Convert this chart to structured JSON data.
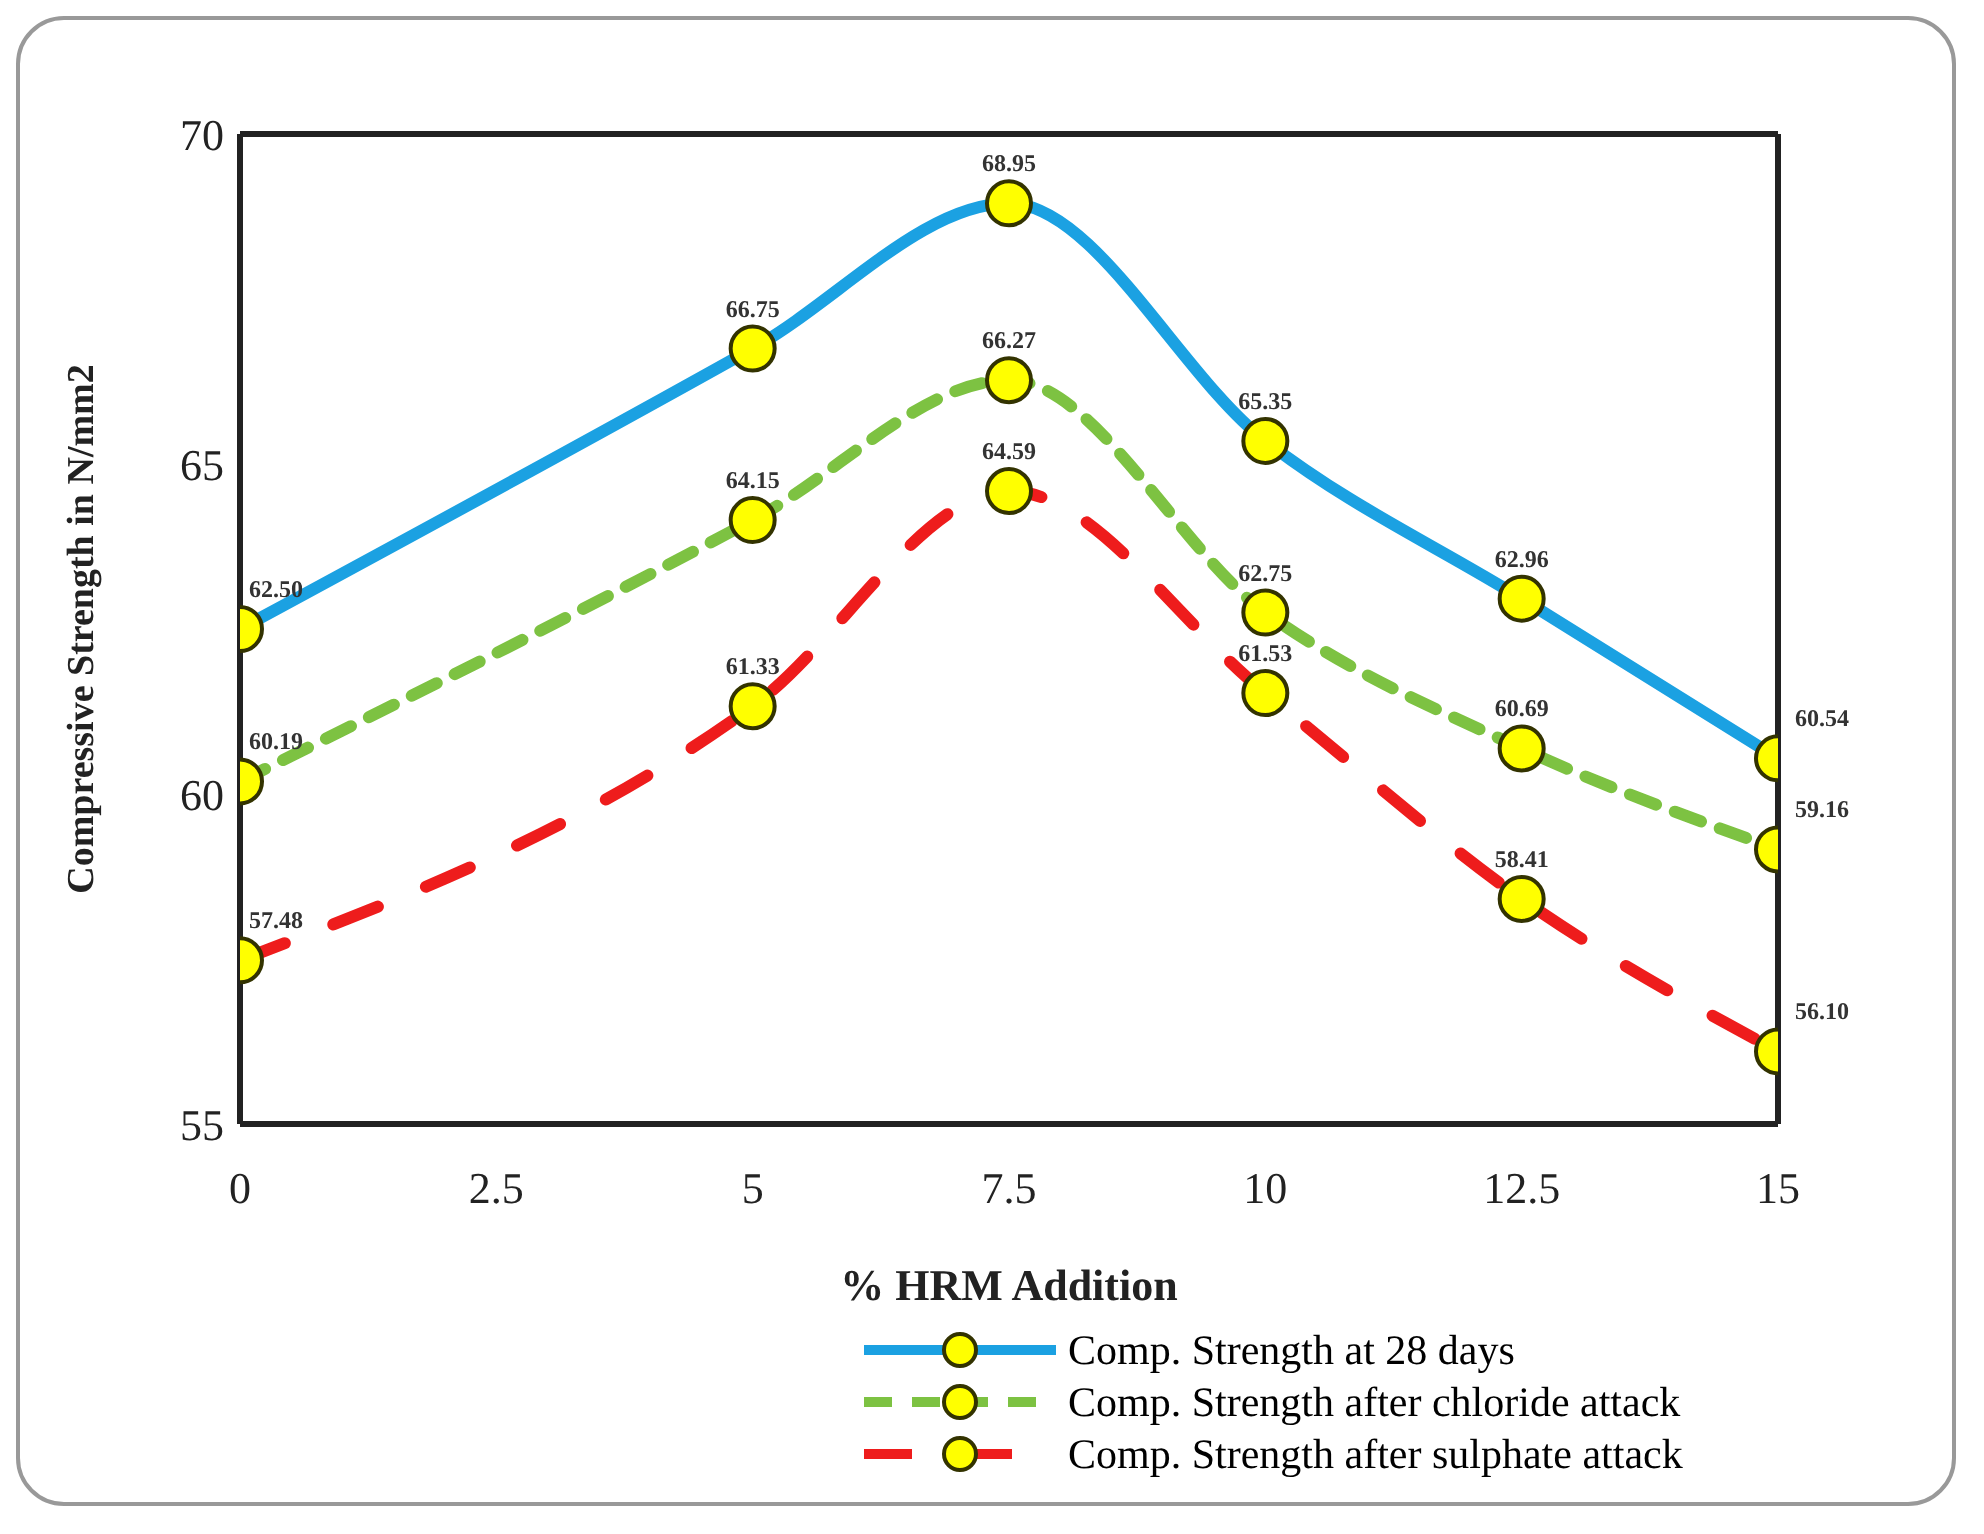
{
  "chart_data": {
    "type": "line",
    "xlabel": "% HRM Addition",
    "ylabel": "Compressive Strength in N/mm2",
    "x": [
      0,
      5,
      7.5,
      10,
      12.5,
      15
    ],
    "xlim": [
      0,
      15
    ],
    "xticks": [
      0,
      2.5,
      5,
      7.5,
      10,
      12.5,
      15
    ],
    "ylim": [
      55,
      70
    ],
    "yticks": [
      55,
      60,
      65,
      70
    ],
    "grid": false,
    "legend": "bottom",
    "marker": "circle",
    "series": [
      {
        "name": "Comp. Strength at 28 days",
        "color": "#1ba1e2",
        "line_style": "solid",
        "values": [
          62.5,
          66.75,
          68.95,
          65.35,
          62.96,
          60.54
        ],
        "value_labels": [
          "62.50",
          "66.75",
          "68.95",
          "65.35",
          "62.96",
          "60.54"
        ]
      },
      {
        "name": "Comp. Strength after chloride attack",
        "color": "#7dc242",
        "line_style": "dashed",
        "values": [
          60.19,
          64.15,
          66.27,
          62.75,
          60.69,
          59.16
        ],
        "value_labels": [
          "60.19",
          "64.15",
          "66.27",
          "62.75",
          "60.69",
          "59.16"
        ]
      },
      {
        "name": "Comp. Strength after sulphate attack",
        "color": "#ee1c1c",
        "line_style": "dashed",
        "values": [
          57.48,
          61.33,
          64.59,
          61.53,
          58.41,
          56.1
        ],
        "value_labels": [
          "57.48",
          "61.33",
          "64.59",
          "61.53",
          "58.41",
          "56.10"
        ]
      }
    ]
  }
}
